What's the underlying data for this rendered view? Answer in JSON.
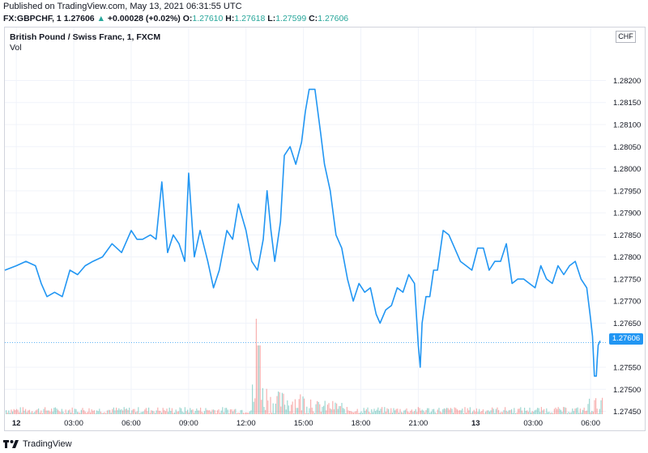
{
  "header": {
    "published": "Published on TradingView.com, May 13, 2021 06:31:55 UTC",
    "symbol": "FX:GBPCHF, 1",
    "last": "1.27606",
    "change_arrow": "▲",
    "change": "+0.00028 (+0.02%)",
    "o_label": "O:",
    "o_value": "1.27610",
    "h_label": "H:",
    "h_value": "1.27618",
    "l_label": "L:",
    "l_value": "1.27599",
    "c_label": "C:",
    "c_value": "1.27606"
  },
  "chart": {
    "title": "British Pound / Swiss Franc, 1, FXCM",
    "vol_label": "Vol",
    "currency": "CHF",
    "current_price_label": "1.27606"
  },
  "footer": {
    "brand": "TradingView"
  },
  "colors": {
    "line": "#2196f3",
    "vol_up": "#26a69a",
    "vol_down": "#ef5350",
    "grid": "#f0f3fa",
    "axis_text": "#131722"
  },
  "chart_data": {
    "type": "line",
    "title": "British Pound / Swiss Franc, 1, FXCM",
    "ylim": [
      1.2744,
      1.2832
    ],
    "ytick_labels": [
      "1.27450",
      "1.27500",
      "1.27550",
      "1.27650",
      "1.27700",
      "1.27750",
      "1.27800",
      "1.27850",
      "1.27900",
      "1.27950",
      "1.28000",
      "1.28050",
      "1.28100",
      "1.28150",
      "1.28200"
    ],
    "yticks": [
      1.2745,
      1.275,
      1.2755,
      1.2765,
      1.277,
      1.2775,
      1.278,
      1.2785,
      1.279,
      1.2795,
      1.28,
      1.2805,
      1.281,
      1.2815,
      1.282
    ],
    "x_unit": "hours from May 12 00:00 UTC",
    "xlim": [
      -0.6,
      30.8
    ],
    "xticks": [
      0,
      3,
      6,
      9,
      12,
      15,
      18,
      21,
      24,
      27,
      30
    ],
    "xtick_labels": [
      "12",
      "03:00",
      "06:00",
      "09:00",
      "12:00",
      "15:00",
      "18:00",
      "21:00",
      "13",
      "03:00",
      "06:00"
    ],
    "bold_xticks": [
      "12",
      "13"
    ],
    "series": [
      {
        "values_x": [
          -0.6,
          0,
          0.5,
          1,
          1.3,
          1.6,
          2,
          2.4,
          2.8,
          3.2,
          3.6,
          4,
          4.5,
          5,
          5.5,
          6,
          6.3,
          6.6,
          7,
          7.3,
          7.6,
          7.9,
          8.2,
          8.5,
          8.8,
          9,
          9.3,
          9.6,
          10,
          10.3,
          10.6,
          11,
          11.3,
          11.6,
          12,
          12.3,
          12.6,
          12.9,
          13.1,
          13.3,
          13.5,
          13.8,
          14,
          14.3,
          14.6,
          14.9,
          15.1,
          15.3,
          15.6,
          15.9,
          16.1,
          16.4,
          16.7,
          17,
          17.3,
          17.6,
          17.9,
          18.2,
          18.5,
          18.8,
          19,
          19.3,
          19.6,
          19.9,
          20.2,
          20.5,
          20.8,
          21,
          21.1,
          21.2,
          21.4,
          21.6,
          21.8,
          22,
          22.3,
          22.6,
          22.9,
          23.2,
          23.5,
          23.8,
          24.1,
          24.4,
          24.7,
          25,
          25.3,
          25.6,
          25.9,
          26.2,
          26.5,
          26.8,
          27.1,
          27.4,
          27.7,
          28,
          28.3,
          28.6,
          28.9,
          29.2,
          29.5,
          29.8,
          30,
          30.1,
          30.2,
          30.3,
          30.35,
          30.4,
          30.5
        ],
        "values_y": [
          1.2777,
          1.2778,
          1.2779,
          1.2778,
          1.2774,
          1.2771,
          1.2772,
          1.2771,
          1.2777,
          1.2776,
          1.2778,
          1.2779,
          1.278,
          1.2783,
          1.2781,
          1.2786,
          1.2784,
          1.2784,
          1.2785,
          1.2784,
          1.2797,
          1.2781,
          1.2785,
          1.2783,
          1.2779,
          1.2799,
          1.278,
          1.2786,
          1.2779,
          1.2773,
          1.2777,
          1.2786,
          1.2784,
          1.2792,
          1.2786,
          1.2779,
          1.2777,
          1.2784,
          1.2795,
          1.2786,
          1.2779,
          1.2788,
          1.2803,
          1.2805,
          1.2801,
          1.2806,
          1.2813,
          1.2818,
          1.2818,
          1.2808,
          1.2801,
          1.2795,
          1.2785,
          1.2782,
          1.2775,
          1.277,
          1.2774,
          1.2772,
          1.2773,
          1.2767,
          1.2765,
          1.2768,
          1.2769,
          1.2773,
          1.2772,
          1.2776,
          1.2774,
          1.276,
          1.2755,
          1.2765,
          1.2771,
          1.2771,
          1.2777,
          1.2777,
          1.2786,
          1.2785,
          1.2782,
          1.2779,
          1.2778,
          1.2777,
          1.2782,
          1.2782,
          1.2777,
          1.2779,
          1.2779,
          1.2783,
          1.2774,
          1.2775,
          1.2775,
          1.2774,
          1.2773,
          1.2778,
          1.2775,
          1.2774,
          1.2778,
          1.2776,
          1.2778,
          1.2779,
          1.2775,
          1.2773,
          1.2766,
          1.2762,
          1.2753,
          1.2753,
          1.2757,
          1.276,
          1.2761
        ]
      }
    ],
    "volume_ylim": [
      0,
      100
    ],
    "volume_note": "1-minute volume bars, elevated around 12:30-15:00 and before 06:30"
  }
}
